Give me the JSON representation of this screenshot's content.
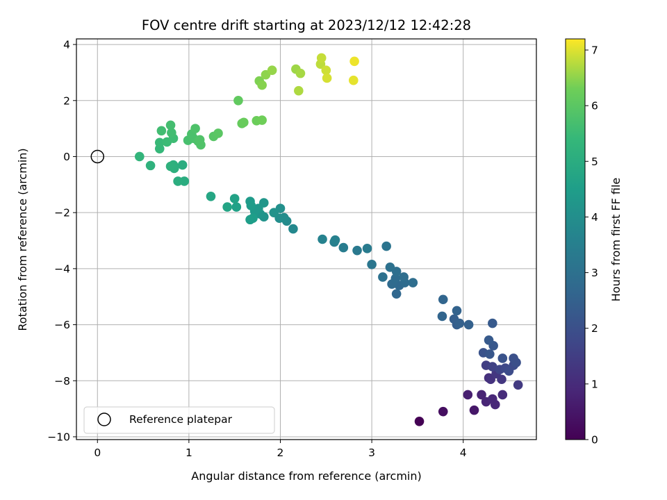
{
  "chart_data": {
    "type": "scatter",
    "title": "FOV centre drift starting at 2023/12/12 12:42:28",
    "xlabel": "Angular distance from reference (arcmin)",
    "ylabel": "Rotation from reference (arcmin)",
    "xlim": [
      -0.23,
      4.8
    ],
    "ylim": [
      -10.1,
      4.2
    ],
    "xticks": [
      0,
      1,
      2,
      3,
      4
    ],
    "yticks": [
      -10,
      -8,
      -6,
      -4,
      -2,
      0,
      2,
      4
    ],
    "grid": true,
    "legend": {
      "placement": "lower-left",
      "entries": [
        "Reference platepar"
      ]
    },
    "colorbar": {
      "label": "Hours from first FF file",
      "min": 0,
      "max": 7.2,
      "ticks": [
        0,
        1,
        2,
        3,
        4,
        5,
        6,
        7
      ],
      "colormap": "viridis"
    },
    "reference_point": {
      "x": 0,
      "y": 0
    },
    "points": [
      {
        "x": 3.52,
        "y": -9.45,
        "h": 0.0
      },
      {
        "x": 3.78,
        "y": -9.1,
        "h": 0.3
      },
      {
        "x": 4.12,
        "y": -9.05,
        "h": 0.5
      },
      {
        "x": 4.05,
        "y": -8.5,
        "h": 0.7
      },
      {
        "x": 4.2,
        "y": -8.5,
        "h": 0.8
      },
      {
        "x": 4.25,
        "y": -8.75,
        "h": 0.85
      },
      {
        "x": 4.32,
        "y": -8.65,
        "h": 0.9
      },
      {
        "x": 4.35,
        "y": -8.85,
        "h": 0.9
      },
      {
        "x": 4.43,
        "y": -8.5,
        "h": 1.0
      },
      {
        "x": 4.28,
        "y": -7.9,
        "h": 1.1
      },
      {
        "x": 4.3,
        "y": -7.95,
        "h": 1.2
      },
      {
        "x": 4.36,
        "y": -7.75,
        "h": 1.3
      },
      {
        "x": 4.42,
        "y": -7.95,
        "h": 1.3
      },
      {
        "x": 4.6,
        "y": -8.15,
        "h": 1.4
      },
      {
        "x": 4.25,
        "y": -7.45,
        "h": 1.5
      },
      {
        "x": 4.32,
        "y": -7.5,
        "h": 1.6
      },
      {
        "x": 4.4,
        "y": -7.6,
        "h": 1.7
      },
      {
        "x": 4.46,
        "y": -7.55,
        "h": 1.8
      },
      {
        "x": 4.5,
        "y": -7.65,
        "h": 1.9
      },
      {
        "x": 4.55,
        "y": -7.45,
        "h": 1.9
      },
      {
        "x": 4.58,
        "y": -7.35,
        "h": 2.0
      },
      {
        "x": 4.55,
        "y": -7.2,
        "h": 2.0
      },
      {
        "x": 4.43,
        "y": -7.2,
        "h": 2.1
      },
      {
        "x": 4.22,
        "y": -7.0,
        "h": 2.1
      },
      {
        "x": 4.29,
        "y": -7.05,
        "h": 2.2
      },
      {
        "x": 4.33,
        "y": -6.75,
        "h": 2.2
      },
      {
        "x": 4.28,
        "y": -6.55,
        "h": 2.3
      },
      {
        "x": 4.32,
        "y": -5.95,
        "h": 2.3
      },
      {
        "x": 3.93,
        "y": -6.0,
        "h": 2.4
      },
      {
        "x": 3.9,
        "y": -5.8,
        "h": 2.45
      },
      {
        "x": 3.96,
        "y": -5.95,
        "h": 2.5
      },
      {
        "x": 4.06,
        "y": -6.0,
        "h": 2.5
      },
      {
        "x": 3.93,
        "y": -5.5,
        "h": 2.55
      },
      {
        "x": 3.77,
        "y": -5.7,
        "h": 2.6
      },
      {
        "x": 3.78,
        "y": -5.1,
        "h": 2.65
      },
      {
        "x": 3.27,
        "y": -4.9,
        "h": 2.7
      },
      {
        "x": 3.3,
        "y": -4.6,
        "h": 2.75
      },
      {
        "x": 3.22,
        "y": -4.55,
        "h": 2.8
      },
      {
        "x": 3.26,
        "y": -4.35,
        "h": 2.85
      },
      {
        "x": 3.36,
        "y": -4.5,
        "h": 2.85
      },
      {
        "x": 3.35,
        "y": -4.3,
        "h": 2.9
      },
      {
        "x": 3.45,
        "y": -4.5,
        "h": 2.9
      },
      {
        "x": 3.27,
        "y": -4.1,
        "h": 2.95
      },
      {
        "x": 3.2,
        "y": -3.95,
        "h": 3.0
      },
      {
        "x": 3.12,
        "y": -4.3,
        "h": 3.0
      },
      {
        "x": 3.16,
        "y": -3.2,
        "h": 3.1
      },
      {
        "x": 3.0,
        "y": -3.85,
        "h": 3.2
      },
      {
        "x": 2.84,
        "y": -3.35,
        "h": 3.3
      },
      {
        "x": 2.95,
        "y": -3.28,
        "h": 3.35
      },
      {
        "x": 2.69,
        "y": -3.25,
        "h": 3.4
      },
      {
        "x": 2.59,
        "y": -3.05,
        "h": 3.5
      },
      {
        "x": 2.6,
        "y": -2.98,
        "h": 3.55
      },
      {
        "x": 2.46,
        "y": -2.95,
        "h": 3.6
      },
      {
        "x": 2.14,
        "y": -2.58,
        "h": 3.8
      },
      {
        "x": 2.07,
        "y": -2.3,
        "h": 3.9
      },
      {
        "x": 2.04,
        "y": -2.18,
        "h": 3.95
      },
      {
        "x": 1.99,
        "y": -2.2,
        "h": 4.0
      },
      {
        "x": 2.0,
        "y": -1.85,
        "h": 4.05
      },
      {
        "x": 1.93,
        "y": -2.0,
        "h": 4.1
      },
      {
        "x": 1.82,
        "y": -2.15,
        "h": 4.15
      },
      {
        "x": 1.78,
        "y": -2.05,
        "h": 4.2
      },
      {
        "x": 1.82,
        "y": -1.65,
        "h": 4.25
      },
      {
        "x": 1.76,
        "y": -1.85,
        "h": 4.3
      },
      {
        "x": 1.72,
        "y": -1.95,
        "h": 4.35
      },
      {
        "x": 1.67,
        "y": -1.6,
        "h": 4.4
      },
      {
        "x": 1.68,
        "y": -1.75,
        "h": 4.45
      },
      {
        "x": 1.7,
        "y": -2.2,
        "h": 4.5
      },
      {
        "x": 1.67,
        "y": -2.25,
        "h": 4.5
      },
      {
        "x": 1.52,
        "y": -1.8,
        "h": 4.6
      },
      {
        "x": 1.5,
        "y": -1.5,
        "h": 4.65
      },
      {
        "x": 1.42,
        "y": -1.8,
        "h": 4.7
      },
      {
        "x": 1.24,
        "y": -1.42,
        "h": 4.8
      },
      {
        "x": 0.93,
        "y": -0.3,
        "h": 5.0
      },
      {
        "x": 0.95,
        "y": -0.88,
        "h": 5.0
      },
      {
        "x": 0.88,
        "y": -0.88,
        "h": 5.05
      },
      {
        "x": 0.84,
        "y": -0.42,
        "h": 5.1
      },
      {
        "x": 0.83,
        "y": -0.3,
        "h": 5.1
      },
      {
        "x": 0.8,
        "y": -0.35,
        "h": 5.15
      },
      {
        "x": 0.58,
        "y": -0.32,
        "h": 5.2
      },
      {
        "x": 0.46,
        "y": 0.0,
        "h": 5.3
      },
      {
        "x": 0.68,
        "y": 0.28,
        "h": 5.4
      },
      {
        "x": 0.68,
        "y": 0.5,
        "h": 5.45
      },
      {
        "x": 0.76,
        "y": 0.52,
        "h": 5.5
      },
      {
        "x": 0.83,
        "y": 0.65,
        "h": 5.55
      },
      {
        "x": 0.81,
        "y": 0.85,
        "h": 5.6
      },
      {
        "x": 0.7,
        "y": 0.92,
        "h": 5.6
      },
      {
        "x": 0.8,
        "y": 1.12,
        "h": 5.65
      },
      {
        "x": 0.99,
        "y": 0.58,
        "h": 5.7
      },
      {
        "x": 1.05,
        "y": 0.65,
        "h": 5.75
      },
      {
        "x": 1.03,
        "y": 0.8,
        "h": 5.75
      },
      {
        "x": 1.07,
        "y": 1.0,
        "h": 5.8
      },
      {
        "x": 1.1,
        "y": 0.55,
        "h": 5.8
      },
      {
        "x": 1.12,
        "y": 0.6,
        "h": 5.85
      },
      {
        "x": 1.13,
        "y": 0.42,
        "h": 5.85
      },
      {
        "x": 1.27,
        "y": 0.72,
        "h": 5.95
      },
      {
        "x": 1.32,
        "y": 0.83,
        "h": 6.0
      },
      {
        "x": 1.54,
        "y": 2.0,
        "h": 6.1
      },
      {
        "x": 1.58,
        "y": 1.18,
        "h": 6.15
      },
      {
        "x": 1.6,
        "y": 1.22,
        "h": 6.2
      },
      {
        "x": 1.74,
        "y": 1.28,
        "h": 6.25
      },
      {
        "x": 1.8,
        "y": 1.3,
        "h": 6.3
      },
      {
        "x": 1.77,
        "y": 2.7,
        "h": 6.4
      },
      {
        "x": 1.8,
        "y": 2.55,
        "h": 6.45
      },
      {
        "x": 1.84,
        "y": 2.92,
        "h": 6.5
      },
      {
        "x": 1.91,
        "y": 3.08,
        "h": 6.55
      },
      {
        "x": 2.17,
        "y": 3.12,
        "h": 6.6
      },
      {
        "x": 2.22,
        "y": 2.97,
        "h": 6.65
      },
      {
        "x": 2.2,
        "y": 2.35,
        "h": 6.7
      },
      {
        "x": 2.44,
        "y": 3.3,
        "h": 6.8
      },
      {
        "x": 2.45,
        "y": 3.52,
        "h": 6.85
      },
      {
        "x": 2.5,
        "y": 3.08,
        "h": 6.9
      },
      {
        "x": 2.51,
        "y": 2.8,
        "h": 6.95
      },
      {
        "x": 2.8,
        "y": 2.72,
        "h": 7.05
      },
      {
        "x": 2.81,
        "y": 3.4,
        "h": 7.1
      }
    ]
  }
}
